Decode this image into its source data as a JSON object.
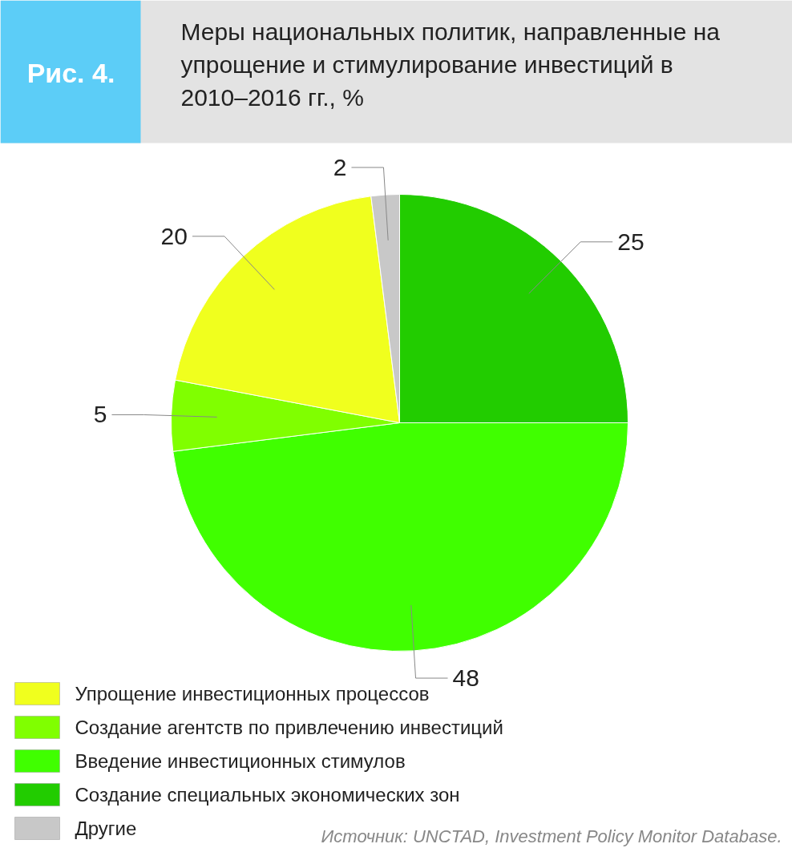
{
  "chart_data": {
    "type": "pie",
    "title": "Меры национальных политик, направленные на упрощение и стимулирование инвестиций в 2010–2016 гг., %",
    "categories": [
      "Создание специальных экономических зон",
      "Введение инвестиционных стимулов",
      "Создание агентств по привлечению инвестиций",
      "Упрощение инвестиционных процессов",
      "Другие"
    ],
    "values": [
      25,
      48,
      5,
      20,
      2
    ],
    "colors": [
      "#22cc00",
      "#40ff00",
      "#80ff00",
      "#f0ff1e",
      "#c8c8c8"
    ],
    "data_labels": true,
    "legend": "bottom",
    "annotations": [
      "Рис. 4.",
      "Источник: UNCTAD, Investment Policy Monitor Database."
    ]
  }
}
